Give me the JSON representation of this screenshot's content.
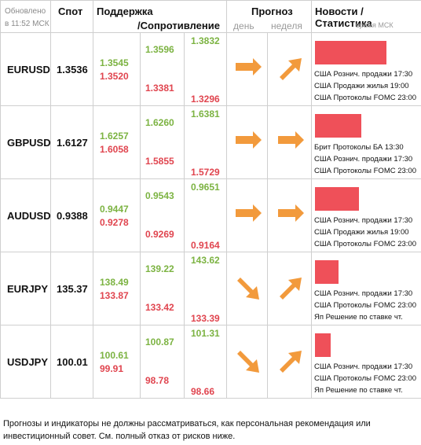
{
  "header": {
    "updated": "Обновлено",
    "updated_time": "в 11:52 МСК",
    "spot": "Спот",
    "support": "Поддержка",
    "resistance": "/Сопротивление",
    "forecast": "Прогноз",
    "day": "день",
    "week": "неделя",
    "news": "Новости / Статистика",
    "news_time": "время МСК"
  },
  "rows": [
    {
      "symbol": "EURUSD",
      "spot": "1.3536",
      "s1": "1.3545",
      "s2": "1.3520",
      "r1": "1.3596",
      "r2": "1.3381",
      "r3": "1.3832",
      "r4": "1.3296",
      "day": "right",
      "week": "up-right",
      "bar": 0.93,
      "news": [
        "США Рознич. продажи 17:30",
        "США Продажи жилья 19:00",
        "США Протоколы FOMC 23:00"
      ]
    },
    {
      "symbol": "GBPUSD",
      "spot": "1.6127",
      "s1": "1.6257",
      "s2": "1.6058",
      "r1": "1.6260",
      "r2": "1.5855",
      "r3": "1.6381",
      "r4": "1.5729",
      "day": "right",
      "week": "right",
      "bar": 0.6,
      "news": [
        "Брит Протоколы БА 13:30",
        "США Рознич. продажи 17:30",
        "США Протоколы FOMC 23:00"
      ]
    },
    {
      "symbol": "AUDUSD",
      "spot": "0.9388",
      "s1": "0.9447",
      "s2": "0.9278",
      "r1": "0.9543",
      "r2": "0.9269",
      "r3": "0.9651",
      "r4": "0.9164",
      "day": "right",
      "week": "right",
      "bar": 0.57,
      "news": [
        "США Рознич. продажи 17:30",
        "США Продажи жилья 19:00",
        "США Протоколы FOMC 23:00"
      ]
    },
    {
      "symbol": "EURJPY",
      "spot": "135.37",
      "s1": "138.49",
      "s2": "133.87",
      "r1": "139.22",
      "r2": "133.42",
      "r3": "143.62",
      "r4": "133.39",
      "day": "down-right",
      "week": "up-right",
      "bar": 0.31,
      "news": [
        "США Рознич. продажи 17:30",
        "США Протоколы FOMC 23:00",
        "Яп Решение по ставке чт."
      ]
    },
    {
      "symbol": "USDJPY",
      "spot": "100.01",
      "s1": "100.61",
      "s2": "99.91",
      "r1": "100.87",
      "r2": "98.78",
      "r3": "101.31",
      "r4": "98.66",
      "day": "down-right",
      "week": "up-right",
      "bar": 0.2,
      "news": [
        "США Рознич. продажи 17:30",
        "США Протоколы FOMC 23:00",
        "Яп Решение по ставке чт."
      ]
    }
  ],
  "disclaimer": "Прогнозы и индикаторы не должны рассматриваться, как персональная рекомендация или инвестиционный совет. См. полный отказ от рисков ниже.",
  "colors": {
    "green": "#7cb342",
    "red": "#e0454f",
    "arrow": "#f29a3c",
    "bar": "#ef5059"
  }
}
